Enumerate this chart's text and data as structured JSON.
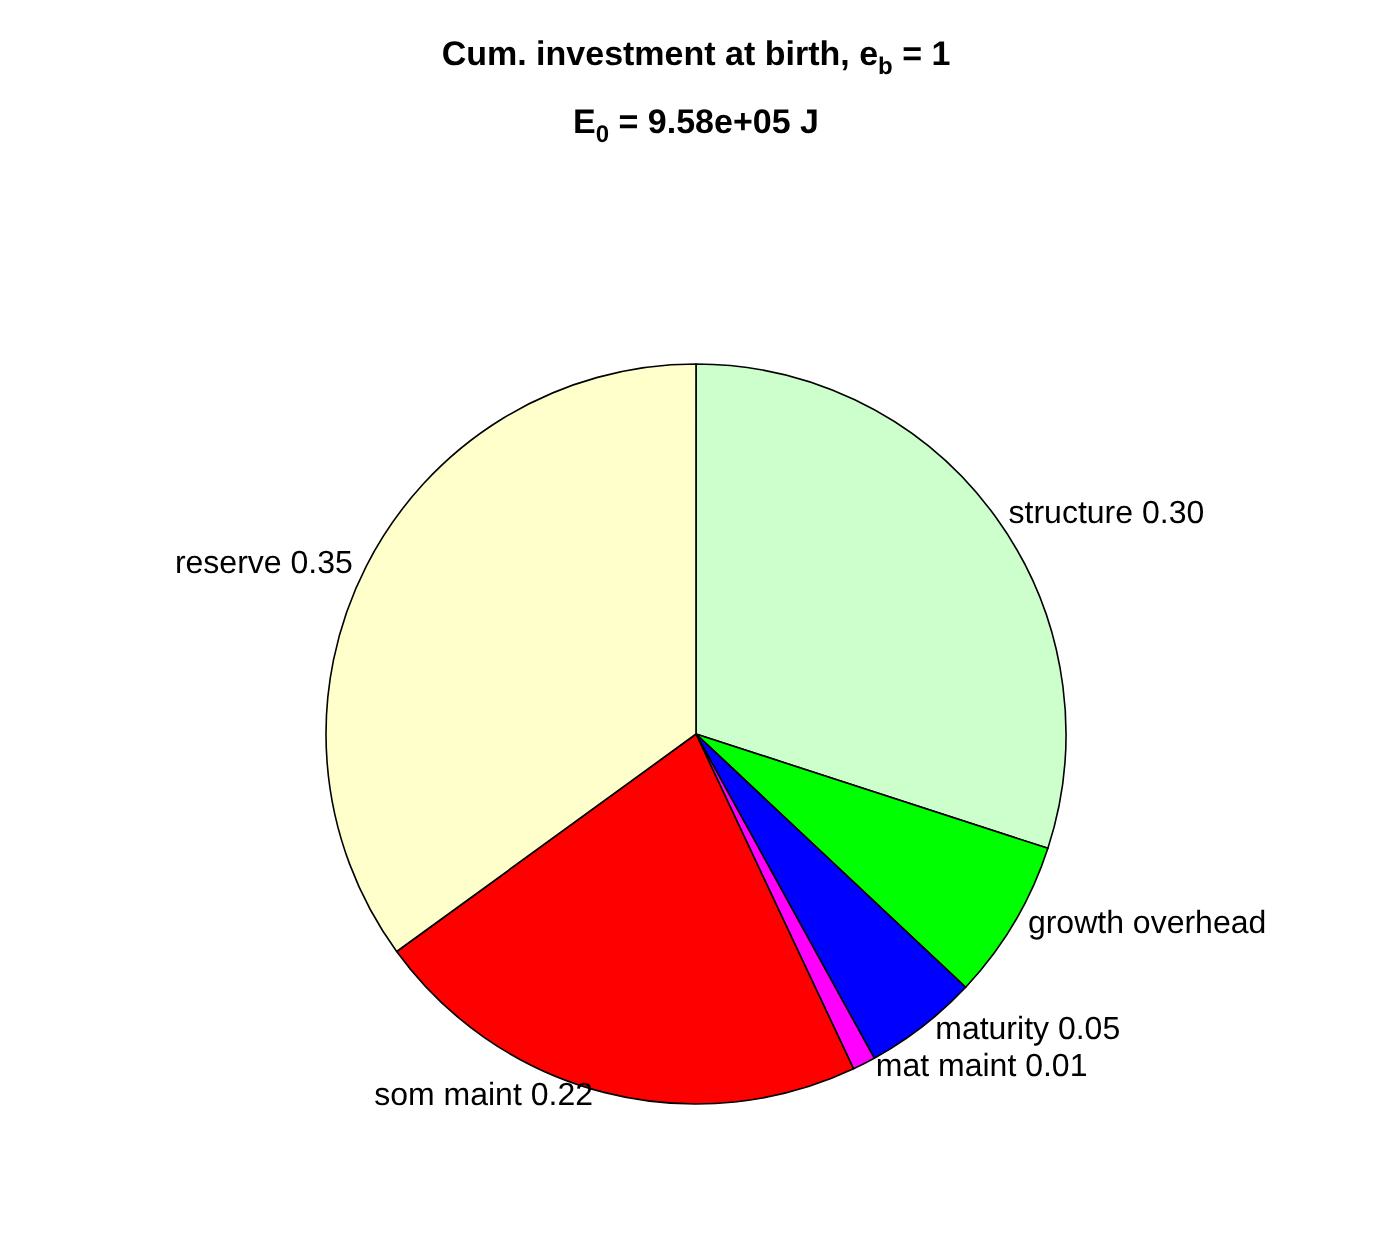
{
  "chart_data": {
    "type": "pie",
    "title": "Cum. investment at birth, e$_{b}$ = 1",
    "subtitle": "E$_{0}$ = 9.58e+05 J",
    "categories": [
      "structure",
      "growth overhead",
      "maturity",
      "mat maint",
      "som maint",
      "reserve"
    ],
    "values": [
      0.3,
      0.07,
      0.05,
      0.01,
      0.22,
      0.35
    ],
    "value_labels": [
      "0.30",
      null,
      "0.05",
      "0.01",
      "0.22",
      "0.35"
    ],
    "colors": [
      "#ccffcc",
      "#00ff00",
      "#0000ff",
      "#ff00ff",
      "#ff0000",
      "#ffffcc"
    ],
    "legend": false
  }
}
